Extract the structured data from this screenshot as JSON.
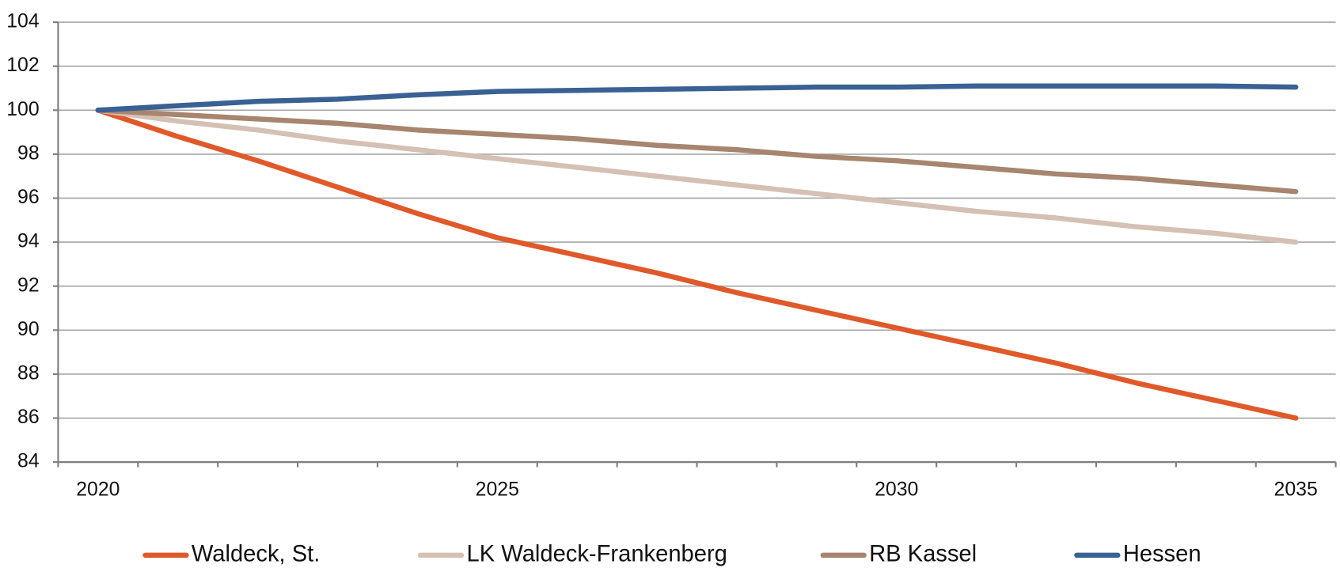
{
  "chart_data": {
    "type": "line",
    "categories": [
      "2020",
      null,
      null,
      null,
      null,
      "2025",
      null,
      null,
      null,
      null,
      "2030",
      null,
      null,
      null,
      null,
      "2035"
    ],
    "series": [
      {
        "name": "Waldeck, St.",
        "color": "#e0592a",
        "values": [
          100,
          98.8,
          97.7,
          96.5,
          95.3,
          94.2,
          93.4,
          92.6,
          91.7,
          90.9,
          90.1,
          89.3,
          88.5,
          87.6,
          86.8,
          86.0
        ]
      },
      {
        "name": "LK Waldeck-Frankenberg",
        "color": "#d5c0b4",
        "values": [
          100,
          99.5,
          99.1,
          98.6,
          98.2,
          97.8,
          97.4,
          97.0,
          96.6,
          96.2,
          95.8,
          95.4,
          95.1,
          94.7,
          94.4,
          94.0
        ]
      },
      {
        "name": "RB Kassel",
        "color": "#a7856f",
        "values": [
          100,
          99.8,
          99.6,
          99.4,
          99.1,
          98.9,
          98.7,
          98.4,
          98.2,
          97.9,
          97.7,
          97.4,
          97.1,
          96.9,
          96.6,
          96.3
        ]
      },
      {
        "name": "Hessen",
        "color": "#3a6193",
        "values": [
          100,
          100.2,
          100.4,
          100.5,
          100.7,
          100.85,
          100.9,
          100.95,
          101.0,
          101.05,
          101.05,
          101.1,
          101.1,
          101.1,
          101.1,
          101.05
        ]
      }
    ],
    "ylim": [
      84,
      104
    ],
    "yticks": [
      84,
      86,
      88,
      90,
      92,
      94,
      96,
      98,
      100,
      102,
      104
    ],
    "grid": true,
    "legend": "bottom"
  }
}
